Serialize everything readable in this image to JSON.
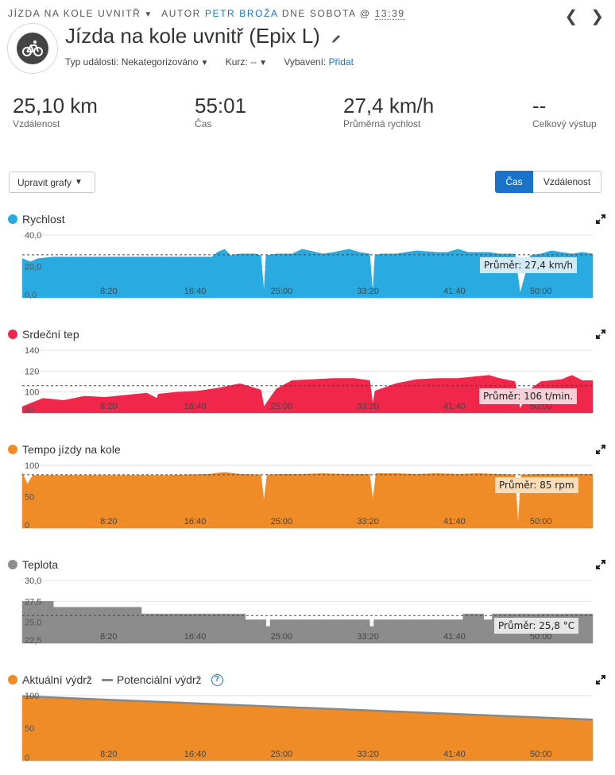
{
  "breadcrumb": {
    "activity_type": "Jízda na kole uvnitř",
    "author_label": "Autor",
    "author": "Petr Broža",
    "date_label": "dne sobota @",
    "time": "13:39"
  },
  "header": {
    "title": "Jízda na kole uvnitř (Epix L)",
    "event_type_label": "Typ události:",
    "event_type_value": "Nekategorizováno",
    "course_label": "Kurz:",
    "course_value": "--",
    "gear_label": "Vybavení:",
    "gear_link": "Přidat",
    "icons": {
      "activity": "cycling-icon",
      "edit": "pencil-icon",
      "prev": "chevron-left-icon",
      "next": "chevron-right-icon"
    }
  },
  "stats": [
    {
      "value": "25,10 km",
      "label": "Vzdálenost"
    },
    {
      "value": "55:01",
      "label": "Čas"
    },
    {
      "value": "27,4 km/h",
      "label": "Průměrná rychlost"
    },
    {
      "value": "--",
      "label": "Celkový výstup"
    }
  ],
  "controls": {
    "edit_charts": "Upravit grafy",
    "toggle_time": "Čas",
    "toggle_distance": "Vzdálenost"
  },
  "colors": {
    "accent": "#1a73c9",
    "speed": "#29abe2",
    "heart_rate": "#f0264b",
    "cadence": "#f08c28",
    "temperature": "#8c8c8c",
    "stamina": "#f08c28"
  },
  "chart_data": [
    {
      "type": "area",
      "title": "Rychlost",
      "x_ticks": [
        "8:20",
        "16:40",
        "25:00",
        "33:20",
        "41:40",
        "50:00"
      ],
      "y_ticks": [
        "40,0",
        "20,0",
        "0,0"
      ],
      "ylim": [
        0,
        40
      ],
      "xlim_min": [
        0,
        55
      ],
      "average": 27.4,
      "average_label": "Průměr: 27,4 km/h",
      "series": [
        {
          "x": [
            0,
            0.8,
            1.5,
            3,
            6,
            9,
            12,
            15,
            17,
            18.3,
            18.8,
            19.5,
            20.1,
            21,
            22.5,
            23,
            23.3,
            23.5,
            24.5,
            26,
            27,
            29,
            30,
            31.5,
            32.5,
            33.5,
            33.8,
            34,
            34.5,
            36,
            38,
            40,
            41,
            42,
            43,
            45,
            46,
            47.5,
            48,
            49,
            50,
            51,
            52,
            53,
            54,
            55
          ],
          "y": [
            25,
            23,
            25,
            26,
            26,
            26,
            26,
            26,
            26,
            26,
            29,
            31,
            27,
            28,
            28,
            27,
            4,
            27,
            28,
            28,
            31,
            28,
            29,
            31,
            29,
            28,
            3,
            27,
            28,
            28,
            30,
            29,
            29,
            31,
            29,
            29,
            28,
            28,
            3,
            27,
            28,
            30,
            29,
            28,
            29,
            28
          ]
        }
      ]
    },
    {
      "type": "area",
      "title": "Srdeční tep",
      "x_ticks": [
        "8:20",
        "16:40",
        "25:00",
        "33:20",
        "41:40",
        "50:00"
      ],
      "y_ticks": [
        "140",
        "120",
        "100",
        "80"
      ],
      "ylim": [
        80,
        140
      ],
      "xlim_min": [
        0,
        55
      ],
      "average": 106,
      "average_label": "Průměr: 106 t/min.",
      "series": [
        {
          "x": [
            0,
            2,
            4,
            6,
            8,
            10,
            12,
            13,
            13.1,
            15,
            17,
            19,
            21,
            23,
            23.3,
            24,
            24.5,
            26,
            28,
            30,
            32,
            33.5,
            33.8,
            34,
            36,
            38,
            40,
            42,
            43,
            44,
            45,
            46,
            47.5,
            48,
            49,
            50,
            51,
            52,
            53,
            54,
            55
          ],
          "y": [
            86,
            94,
            92,
            96,
            95,
            97,
            99,
            94,
            98,
            100,
            101,
            104,
            108,
            102,
            86,
            96,
            103,
            111,
            112,
            113,
            113,
            111,
            88,
            101,
            108,
            112,
            113,
            113,
            114,
            115,
            116,
            113,
            110,
            84,
            103,
            110,
            111,
            112,
            116,
            111,
            111
          ]
        }
      ]
    },
    {
      "type": "area",
      "title": "Tempo jízdy na kole",
      "x_ticks": [
        "8:20",
        "16:40",
        "25:00",
        "33:20",
        "41:40",
        "50:00"
      ],
      "y_ticks": [
        "100",
        "50",
        "0"
      ],
      "ylim": [
        0,
        100
      ],
      "xlim_min": [
        0,
        55
      ],
      "average": 85,
      "average_label": "Průměr: 85 rpm",
      "series": [
        {
          "x": [
            0,
            0.5,
            1,
            3,
            5,
            8,
            11,
            14,
            16,
            18,
            19.5,
            21,
            23,
            23.3,
            23.6,
            25,
            27,
            29,
            31,
            33.5,
            33.8,
            34.1,
            36,
            38,
            40,
            42,
            44,
            46,
            47.5,
            47.8,
            48.1,
            50,
            52,
            54,
            55
          ],
          "y": [
            88,
            70,
            84,
            84,
            84,
            84,
            84,
            84,
            85,
            86,
            89,
            86,
            85,
            43,
            85,
            86,
            86,
            87,
            86,
            86,
            44,
            87,
            87,
            86,
            87,
            86,
            87,
            86,
            85,
            6,
            85,
            86,
            86,
            86,
            86
          ]
        }
      ]
    },
    {
      "type": "area",
      "title": "Teplota",
      "x_ticks": [
        "8:20",
        "16:40",
        "25:00",
        "33:20",
        "41:40",
        "50:00"
      ],
      "y_ticks": [
        "30,0",
        "27,5",
        "25,0",
        "22,5"
      ],
      "ylim": [
        22.5,
        30
      ],
      "xlim_min": [
        0,
        55
      ],
      "average": 25.8,
      "average_label": "Průměr: 25,8 °C",
      "series": [
        {
          "x": [
            0,
            3,
            3,
            11.5,
            11.5,
            21.5,
            21.5,
            23.5,
            23.5,
            23.9,
            23.9,
            33.5,
            33.5,
            33.9,
            33.9,
            42.5,
            42.5,
            44.5,
            44.5,
            44.6,
            44.6,
            45.3,
            45.3,
            55
          ],
          "y": [
            27.5,
            27.5,
            26.8,
            26.8,
            26,
            26,
            25.3,
            25.3,
            24.5,
            24.5,
            25.3,
            25.3,
            24.5,
            24.5,
            25.3,
            25.3,
            26,
            26,
            25.3,
            25.3,
            25.3,
            25.3,
            26,
            26
          ]
        }
      ]
    },
    {
      "type": "area",
      "title": "Aktuální výdrž",
      "legend": [
        "Aktuální výdrž",
        "Potenciální výdrž"
      ],
      "x_ticks": [
        "8:20",
        "16:40",
        "25:00",
        "33:20",
        "41:40",
        "50:00"
      ],
      "y_ticks": [
        "100",
        "50",
        "0"
      ],
      "ylim": [
        0,
        100
      ],
      "xlim_min": [
        0,
        55
      ],
      "series": [
        {
          "name": "Aktuální výdrž",
          "x": [
            0,
            55
          ],
          "y": [
            99,
            63
          ]
        },
        {
          "name": "Potenciální výdrž",
          "x": [
            0,
            55
          ],
          "y": [
            99,
            63
          ]
        }
      ]
    }
  ]
}
